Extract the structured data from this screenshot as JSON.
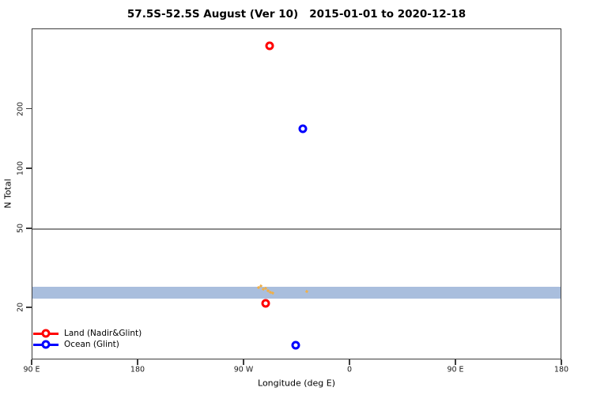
{
  "title": "57.5S-52.5S August (Ver 10)   2015-01-01 to 2020-12-18",
  "chart_data": {
    "type": "scatter",
    "title": "57.5S-52.5S August (Ver 10)   2015-01-01 to 2020-12-18",
    "xlabel": "Longitude (deg E)",
    "ylabel": "N Total",
    "y_scale": "log10",
    "ylim": [
      10.9,
      507
    ],
    "x_axis": {
      "range_deg_unwrapped": [
        90,
        540
      ],
      "ticks": [
        90,
        180,
        270,
        360,
        450,
        540
      ],
      "tick_labels": [
        "90 E",
        "180",
        "90 W",
        "0",
        "90 E",
        "180"
      ]
    },
    "y_axis": {
      "ticks": [
        20,
        50,
        100,
        200
      ],
      "tick_labels": [
        "20",
        "50",
        "100",
        "200"
      ]
    },
    "reference_line": {
      "y": 50,
      "color": "#8c8c8c"
    },
    "band": {
      "y_from": 22.2,
      "y_to": 25.5,
      "color": "#a9bedd"
    },
    "series": [
      {
        "name": "Land (Nadir&Glint)",
        "color": "#ff0000",
        "marker": "open-circle",
        "points": [
          {
            "lon_deg_e": 291.5,
            "n_total": 420
          },
          {
            "lon_deg_e": 288.2,
            "n_total": 21
          }
        ]
      },
      {
        "name": "Ocean (Glint)",
        "color": "#0000ff",
        "marker": "open-circle",
        "points": [
          {
            "lon_deg_e": 319.6,
            "n_total": 160
          },
          {
            "lon_deg_e": 313.6,
            "n_total": 13
          }
        ]
      }
    ],
    "small_marks": {
      "color": "#f0b04a",
      "points": [
        {
          "lon_deg_e": 282.1,
          "n_total": 25.4
        },
        {
          "lon_deg_e": 284.1,
          "n_total": 25.8
        },
        {
          "lon_deg_e": 286.1,
          "n_total": 24.9
        },
        {
          "lon_deg_e": 288.2,
          "n_total": 25.2
        },
        {
          "lon_deg_e": 290.2,
          "n_total": 24.4
        },
        {
          "lon_deg_e": 292.2,
          "n_total": 24.0
        },
        {
          "lon_deg_e": 294.2,
          "n_total": 23.8
        },
        {
          "lon_deg_e": 323.1,
          "n_total": 24.3
        }
      ]
    },
    "legend": {
      "position": "bottom-left"
    }
  }
}
